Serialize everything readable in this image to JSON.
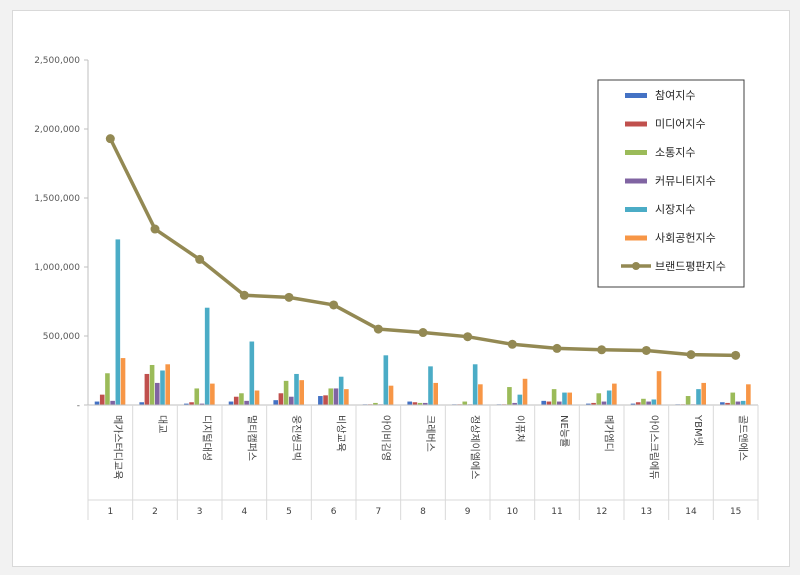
{
  "chart_data": {
    "type": "bar",
    "title": "",
    "xlabel": "",
    "ylabel": "",
    "ylim": [
      0,
      2500000
    ],
    "yticks": [
      "2,500,000",
      "2,000,000",
      "1,500,000",
      "1,000,000",
      "500,000",
      "-"
    ],
    "grid": false,
    "legend_position": "top-right",
    "categories": [
      "메가스터디교육",
      "대교",
      "디지털대성",
      "멀티캠퍼스",
      "웅진씽크빅",
      "비상교육",
      "아이비김영",
      "크레버스",
      "정상제이엘에스",
      "이퓨쳐",
      "NE능률",
      "메가엠디",
      "아이스크림에듀",
      "YBM넷",
      "골드앤에스"
    ],
    "ranks": [
      "1",
      "2",
      "3",
      "4",
      "5",
      "6",
      "7",
      "8",
      "9",
      "10",
      "11",
      "12",
      "13",
      "14",
      "15"
    ],
    "series": [
      {
        "name": "참여지수",
        "color": "#4472c4",
        "values": [
          25000,
          20000,
          10000,
          25000,
          35000,
          65000,
          5000,
          25000,
          5000,
          5000,
          30000,
          10000,
          10000,
          5000,
          20000
        ]
      },
      {
        "name": "미디어지수",
        "color": "#c0504d",
        "values": [
          75000,
          225000,
          20000,
          60000,
          85000,
          70000,
          5000,
          20000,
          5000,
          5000,
          25000,
          15000,
          20000,
          5000,
          15000
        ]
      },
      {
        "name": "소통지수",
        "color": "#9bbb59",
        "values": [
          230000,
          290000,
          120000,
          85000,
          175000,
          120000,
          15000,
          15000,
          25000,
          130000,
          115000,
          85000,
          45000,
          65000,
          90000
        ]
      },
      {
        "name": "커뮤니티지수",
        "color": "#8064a2",
        "values": [
          30000,
          160000,
          10000,
          30000,
          60000,
          120000,
          5000,
          15000,
          5000,
          15000,
          25000,
          25000,
          25000,
          5000,
          25000
        ]
      },
      {
        "name": "시장지수",
        "color": "#4bacc6",
        "values": [
          1200000,
          250000,
          705000,
          460000,
          225000,
          205000,
          360000,
          280000,
          295000,
          75000,
          90000,
          105000,
          40000,
          115000,
          30000
        ]
      },
      {
        "name": "사회공헌지수",
        "color": "#f79646",
        "values": [
          340000,
          295000,
          155000,
          105000,
          180000,
          115000,
          140000,
          160000,
          150000,
          190000,
          90000,
          155000,
          245000,
          160000,
          150000
        ]
      }
    ],
    "line": {
      "name": "브랜드평판지수",
      "color": "#938953",
      "values": [
        1930000,
        1275000,
        1055000,
        795000,
        780000,
        725000,
        550000,
        525000,
        495000,
        440000,
        410000,
        400000,
        395000,
        365000,
        360000
      ]
    }
  }
}
